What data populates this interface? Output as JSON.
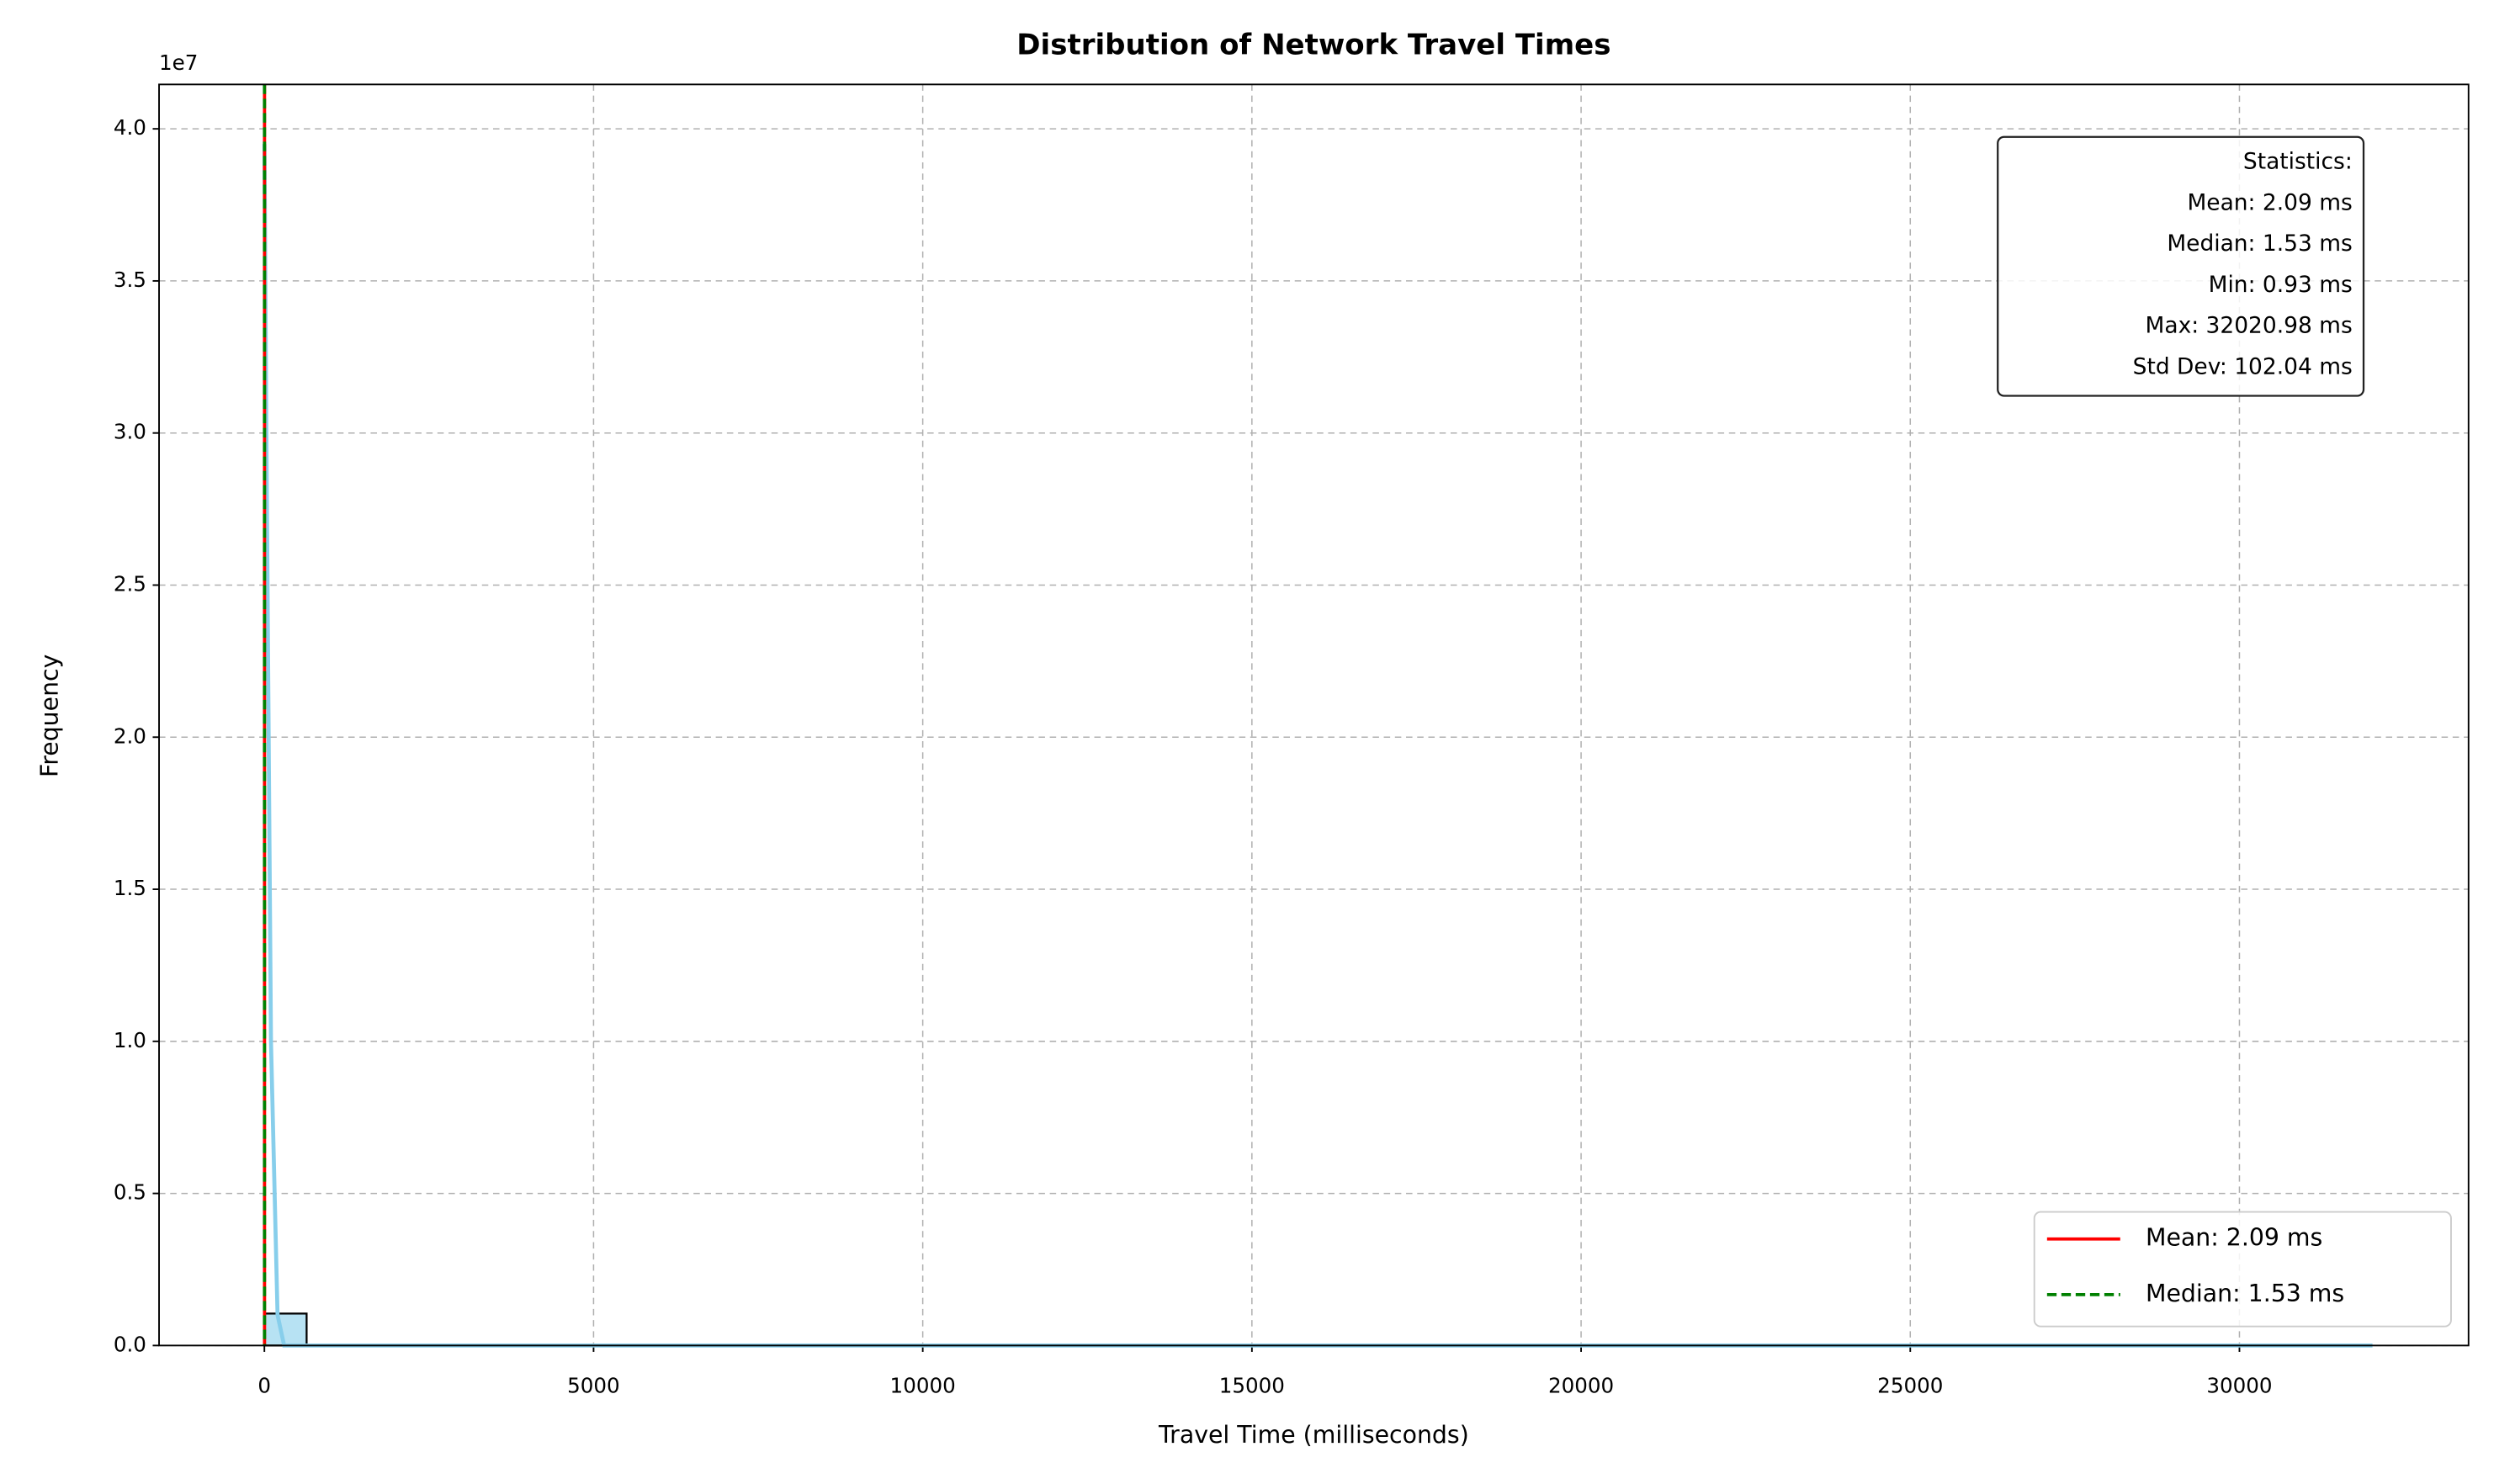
{
  "chart_data": {
    "type": "histogram",
    "title": "Distribution of Network Travel Times",
    "xlabel": "Travel Time (milliseconds)",
    "ylabel": "Frequency",
    "y_offset_label": "1e7",
    "bins": [
      0.93,
      641.331,
      1281.732,
      1922.133,
      2562.534,
      3202.935,
      3843.336,
      4483.737,
      5124.138,
      5764.539,
      6404.94,
      7045.341,
      7685.742,
      8326.143,
      8966.544,
      9606.945,
      10247.346,
      10887.747,
      11528.148,
      12168.549,
      12808.95,
      13449.351,
      14089.752,
      14730.153,
      15370.554,
      16010.955,
      16651.356,
      17291.757,
      17932.158,
      18572.559,
      19212.96,
      19853.361,
      20493.762,
      21134.163,
      21774.564,
      22414.965,
      23055.366,
      23695.767,
      24336.168,
      24976.569,
      25616.97,
      26257.371,
      26897.772,
      27538.173,
      28178.574,
      28818.975,
      29459.376,
      30099.777,
      30740.178,
      31380.579,
      32020.98
    ],
    "counts": [
      1050000,
      0,
      0,
      0,
      0,
      0,
      0,
      0,
      0,
      0,
      0,
      0,
      0,
      0,
      0,
      0,
      0,
      0,
      0,
      0,
      0,
      0,
      0,
      0,
      0,
      0,
      0,
      0,
      0,
      0,
      0,
      0,
      0,
      0,
      0,
      0,
      0,
      0,
      0,
      0,
      0,
      0,
      0,
      0,
      0,
      0,
      0,
      0,
      0,
      0
    ],
    "color": "#87ceeb",
    "edgecolor": "#000000",
    "kde": {
      "color": "#87ceeb",
      "x": [
        0.93,
        30,
        100,
        200,
        300,
        32020.98
      ],
      "values": [
        39500000,
        30000000,
        10000000,
        1000000,
        0,
        0
      ]
    },
    "vlines": [
      {
        "name": "Mean: 2.09 ms",
        "x": 2.09,
        "color": "#ff0000",
        "dashed": false
      },
      {
        "name": "Median: 1.53 ms",
        "x": 1.53,
        "color": "#008000",
        "dashed": true
      }
    ],
    "annotation": [
      "Statistics:",
      "Mean: 2.09 ms",
      "Median: 1.53 ms",
      "Min: 0.93 ms",
      "Max: 32020.98 ms",
      "Std Dev: 102.04 ms"
    ],
    "xlim": [
      -1600,
      33480
    ],
    "ylim": [
      0,
      41460000
    ],
    "xticks": [
      0,
      5000,
      10000,
      15000,
      20000,
      25000,
      30000
    ],
    "yticks": [
      {
        "value": 0,
        "label": "0.0"
      },
      {
        "value": 5000000,
        "label": "0.5"
      },
      {
        "value": 10000000,
        "label": "1.0"
      },
      {
        "value": 15000000,
        "label": "1.5"
      },
      {
        "value": 20000000,
        "label": "2.0"
      },
      {
        "value": 25000000,
        "label": "2.5"
      },
      {
        "value": 30000000,
        "label": "3.0"
      },
      {
        "value": 35000000,
        "label": "3.5"
      },
      {
        "value": 40000000,
        "label": "4.0"
      }
    ],
    "grid": true,
    "legend": "lower right"
  }
}
